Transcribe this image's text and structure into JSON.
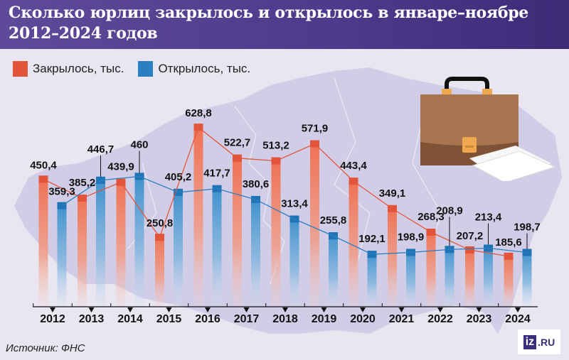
{
  "header": {
    "title_line1": "Сколько юрлиц закрылось и открылось в январе–ноябре",
    "title_line2": "2012–2024 годов"
  },
  "legend": {
    "closed_label": "Закрылось, тыс.",
    "opened_label": "Открылось, тыс."
  },
  "colors": {
    "header_bg": "#4d3a8a",
    "closed": "#e2553b",
    "opened": "#2a7fc0",
    "background": "#e9e6f1"
  },
  "source": "Источник: ФНС",
  "logo": {
    "mark": "iz",
    "text": ".RU"
  },
  "chart_data": {
    "type": "bar",
    "title": "Сколько юрлиц закрылось и открылось в январе–ноябре 2012–2024 годов",
    "xlabel": "",
    "ylabel": "тыс.",
    "categories": [
      "2012",
      "2013",
      "2014",
      "2015",
      "2016",
      "2017",
      "2018",
      "2019",
      "2020",
      "2021",
      "2022",
      "2023",
      "2024"
    ],
    "series": [
      {
        "name": "Закрылось, тыс.",
        "color": "#e2553b",
        "values": [
          450.4,
          385.2,
          439.9,
          250.8,
          628.8,
          522.7,
          513.2,
          571.9,
          443.4,
          349.1,
          268.3,
          207.2,
          185.6
        ],
        "labels": [
          "450,4",
          "385,2",
          "439,9",
          "250,8",
          "628,8",
          "522,7",
          "513,2",
          "571,9",
          "443,4",
          "349,1",
          "268,3",
          "207,2",
          "185,6"
        ]
      },
      {
        "name": "Открылось, тыс.",
        "color": "#2a7fc0",
        "values": [
          359.3,
          446.7,
          460.0,
          405.2,
          417.7,
          380.6,
          313.4,
          255.8,
          192.1,
          198.9,
          208.9,
          213.4,
          198.7
        ],
        "labels": [
          "359,3",
          "446,7",
          "460",
          "405,2",
          "417,7",
          "380,6",
          "313,4",
          "255,8",
          "192,1",
          "198,9",
          "208,9",
          "213,4",
          "198,7"
        ]
      }
    ],
    "grid": false,
    "legend_position": "top-left",
    "overlay": "bars with connecting lines through bar tops"
  }
}
